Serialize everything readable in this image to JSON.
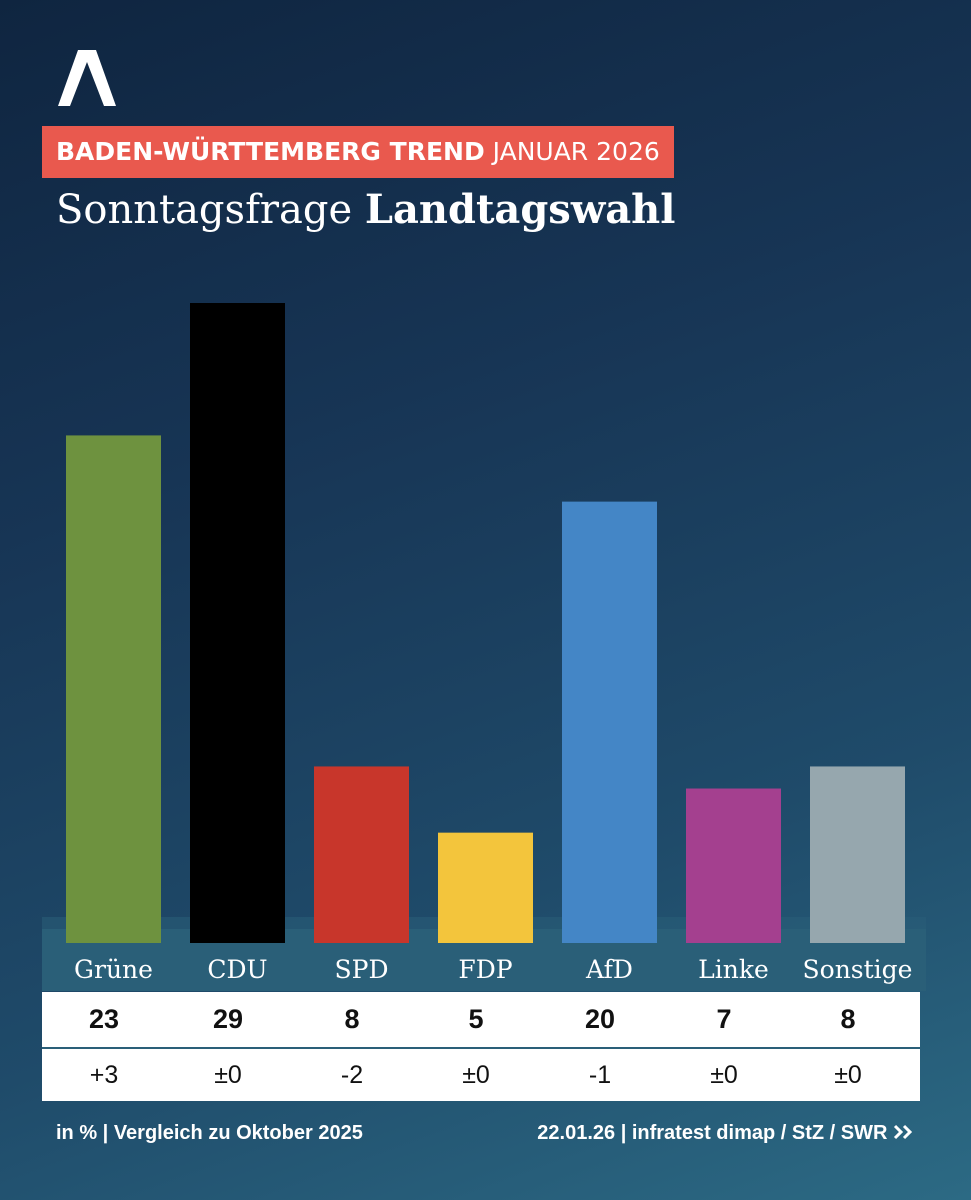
{
  "header": {
    "logo_name": "ard-logo",
    "tagline_bold": "BADEN-WÜRTTEMBERG TREND",
    "tagline_regular": "JANUAR 2026",
    "title_regular": "Sonntagsfrage",
    "title_bold": "Landtagswahl"
  },
  "chart_data": {
    "type": "bar",
    "categories": [
      "Grüne",
      "CDU",
      "SPD",
      "FDP",
      "AfD",
      "Linke",
      "Sonstige"
    ],
    "values": [
      23,
      29,
      8,
      5,
      20,
      7,
      8
    ],
    "changes": [
      "+3",
      "±0",
      "-2",
      "±0",
      "-1",
      "±0",
      "±0"
    ],
    "colors": [
      "#6e923f",
      "#000000",
      "#c8362b",
      "#f3c53c",
      "#4486c6",
      "#a4408f",
      "#96a7ae"
    ],
    "unit": "%",
    "ylim": [
      0,
      29
    ]
  },
  "footer": {
    "left": "in % | Vergleich zu Oktober 2025",
    "right": "22.01.26 | infratest dimap / StZ /",
    "brand": "SWR"
  },
  "colors": {
    "accent": "#e9594e",
    "band": "#2a5f78"
  }
}
